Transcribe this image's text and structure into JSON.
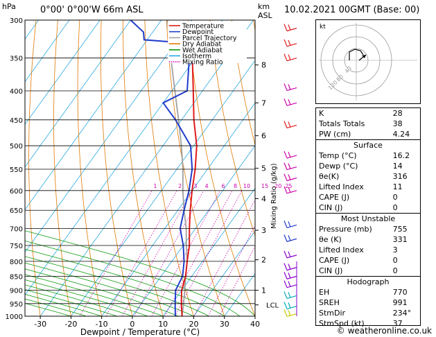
{
  "header": {
    "location": "0°00' 0°00'W 66m ASL",
    "datetime": "10.02.2021 00GMT (Base: 00)",
    "pressure_unit": "hPa",
    "height_unit": "km\nASL",
    "mixing_label": "Mixing Ratio (g/kg)"
  },
  "chart_data": {
    "type": "line",
    "title": "",
    "xlabel": "Dewpoint / Temperature (°C)",
    "ylabel": "hPa",
    "xlim": [
      -35,
      40
    ],
    "ylim": [
      1000,
      300
    ],
    "x_ticks": [
      "-30",
      "-20",
      "-10",
      "0",
      "10",
      "20",
      "30",
      "40"
    ],
    "pressure_ticks": [
      300,
      350,
      400,
      450,
      500,
      550,
      600,
      650,
      700,
      750,
      800,
      850,
      900,
      950,
      1000
    ],
    "height_ticks": [
      {
        "km": "1",
        "p": 900
      },
      {
        "km": "2",
        "p": 795
      },
      {
        "km": "3",
        "p": 705
      },
      {
        "km": "4",
        "p": 620
      },
      {
        "km": "5",
        "p": 548
      },
      {
        "km": "6",
        "p": 480
      },
      {
        "km": "7",
        "p": 420
      },
      {
        "km": "8",
        "p": 360
      }
    ],
    "lcl": {
      "label": "LCL",
      "p": 955
    },
    "mixing_ratios": [
      "1",
      "2",
      "3",
      "4",
      "6",
      "8",
      "10",
      "15",
      "20",
      "25"
    ],
    "legend": [
      {
        "name": "Temperature",
        "color": "#e0191b"
      },
      {
        "name": "Dewpoint",
        "color": "#1f3ccc"
      },
      {
        "name": "Parcel Trajectory",
        "color": "#a0a0a0"
      },
      {
        "name": "Dry Adiabat",
        "color": "#e07800"
      },
      {
        "name": "Wet Adiabat",
        "color": "#0a9a0a"
      },
      {
        "name": "Isotherm",
        "color": "#29a8e0"
      },
      {
        "name": "Mixing Ratio",
        "color": "#cc00aa"
      }
    ],
    "series": [
      {
        "name": "Temperature",
        "points": [
          [
            1000,
            16.2
          ],
          [
            950,
            13
          ],
          [
            900,
            10
          ],
          [
            850,
            8
          ],
          [
            800,
            5
          ],
          [
            750,
            2
          ],
          [
            700,
            -2
          ],
          [
            650,
            -6
          ],
          [
            600,
            -10
          ],
          [
            550,
            -14
          ],
          [
            500,
            -19
          ],
          [
            450,
            -26
          ],
          [
            400,
            -33
          ],
          [
            350,
            -41
          ],
          [
            330,
            -43
          ],
          [
            320,
            -47
          ]
        ]
      },
      {
        "name": "Dewpoint",
        "points": [
          [
            1000,
            14
          ],
          [
            950,
            11
          ],
          [
            900,
            8
          ],
          [
            850,
            7
          ],
          [
            800,
            4
          ],
          [
            750,
            0
          ],
          [
            700,
            -5
          ],
          [
            650,
            -8
          ],
          [
            600,
            -11
          ],
          [
            550,
            -15
          ],
          [
            500,
            -21
          ],
          [
            450,
            -32
          ],
          [
            420,
            -40
          ],
          [
            400,
            -35
          ],
          [
            350,
            -42
          ],
          [
            330,
            -44
          ],
          [
            325,
            -61
          ],
          [
            315,
            -63
          ],
          [
            300,
            -70
          ]
        ]
      },
      {
        "name": "Parcel Trajectory",
        "points": [
          [
            1000,
            16.2
          ],
          [
            955,
            14
          ],
          [
            900,
            11
          ],
          [
            850,
            8
          ],
          [
            800,
            5
          ],
          [
            750,
            1
          ],
          [
            700,
            -3
          ],
          [
            650,
            -8
          ],
          [
            600,
            -13
          ],
          [
            550,
            -18
          ],
          [
            500,
            -24
          ],
          [
            450,
            -31
          ],
          [
            400,
            -39
          ],
          [
            350,
            -48
          ],
          [
            300,
            -58
          ]
        ]
      }
    ]
  },
  "indices": [
    {
      "label": "K",
      "value": "28"
    },
    {
      "label": "Totals Totals",
      "value": "38"
    },
    {
      "label": "PW (cm)",
      "value": "4.24"
    }
  ],
  "surface": {
    "title": "Surface",
    "rows": [
      {
        "label": "Temp (°C)",
        "value": "16.2"
      },
      {
        "label": "Dewp (°C)",
        "value": "14"
      },
      {
        "label": "θe(K)",
        "value": "316"
      },
      {
        "label": "Lifted Index",
        "value": "11"
      },
      {
        "label": "CAPE (J)",
        "value": "0"
      },
      {
        "label": "CIN (J)",
        "value": "0"
      }
    ]
  },
  "most_unstable": {
    "title": "Most Unstable",
    "rows": [
      {
        "label": "Pressure (mb)",
        "value": "755"
      },
      {
        "label": "θe (K)",
        "value": "331"
      },
      {
        "label": "Lifted Index",
        "value": "3"
      },
      {
        "label": "CAPE (J)",
        "value": "0"
      },
      {
        "label": "CIN (J)",
        "value": "0"
      }
    ]
  },
  "hodograph_table": {
    "title": "Hodograph",
    "rows": [
      {
        "label": "EH",
        "value": "770"
      },
      {
        "label": "SREH",
        "value": "991"
      },
      {
        "label": "StmDir",
        "value": "234°"
      },
      {
        "label": "StmSpd (kt)",
        "value": "37"
      }
    ]
  },
  "hodograph": {
    "unit": "kt",
    "rings": [
      "40",
      "80",
      "120"
    ]
  },
  "footer": "© weatheronline.co.uk"
}
